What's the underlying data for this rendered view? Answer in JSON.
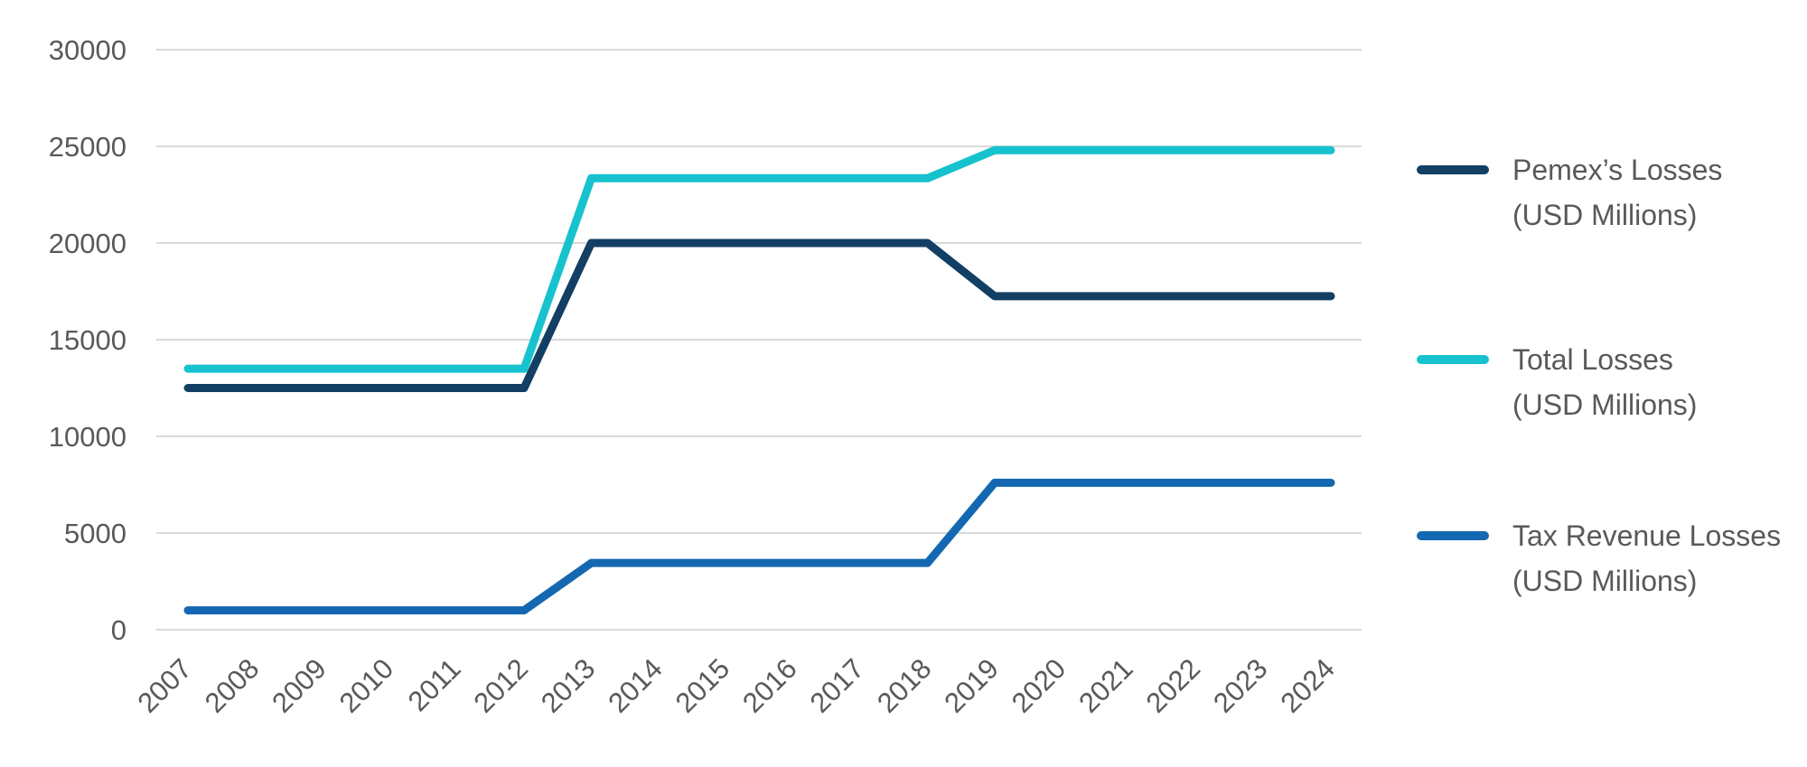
{
  "chart_data": {
    "type": "line",
    "x": [
      2007,
      2008,
      2009,
      2010,
      2011,
      2012,
      2013,
      2014,
      2015,
      2016,
      2017,
      2018,
      2019,
      2020,
      2021,
      2022,
      2023,
      2024
    ],
    "series": [
      {
        "name": "Pemex’s Losses (USD Millions)",
        "color": "#123f63",
        "values": [
          12500,
          12500,
          12500,
          12500,
          12500,
          12500,
          20000,
          20000,
          20000,
          20000,
          20000,
          20000,
          17250,
          17250,
          17250,
          17250,
          17250,
          17250
        ]
      },
      {
        "name": "Total Losses (USD Millions)",
        "color": "#16c2ce",
        "values": [
          13500,
          13500,
          13500,
          13500,
          13500,
          13500,
          23350,
          23350,
          23350,
          23350,
          23350,
          23350,
          24800,
          24800,
          24800,
          24800,
          24800,
          24800
        ]
      },
      {
        "name": "Tax Revenue Losses (USD Millions)",
        "color": "#1368b1",
        "values": [
          1000,
          1000,
          1000,
          1000,
          1000,
          1000,
          3450,
          3450,
          3450,
          3450,
          3450,
          3450,
          7600,
          7600,
          7600,
          7600,
          7600,
          7600
        ]
      }
    ],
    "title": "",
    "xlabel": "",
    "ylabel": "",
    "ylim": [
      0,
      30000
    ],
    "yticks": [
      0,
      5000,
      10000,
      15000,
      20000,
      25000,
      30000
    ],
    "grid": true,
    "legend_position": "right"
  },
  "legend": {
    "items": [
      {
        "label_line1": "Pemex’s Losses",
        "label_line2": "(USD Millions)",
        "color": "#123f63"
      },
      {
        "label_line1": "Total Losses",
        "label_line2": "(USD Millions)",
        "color": "#16c2ce"
      },
      {
        "label_line1": "Tax Revenue Losses",
        "label_line2": "(USD Millions)",
        "color": "#1368b1"
      }
    ]
  },
  "colors": {
    "background": "#ffffff",
    "gridline": "#d9d9d9",
    "tick_text": "#595959",
    "legend_text": "#595959"
  }
}
